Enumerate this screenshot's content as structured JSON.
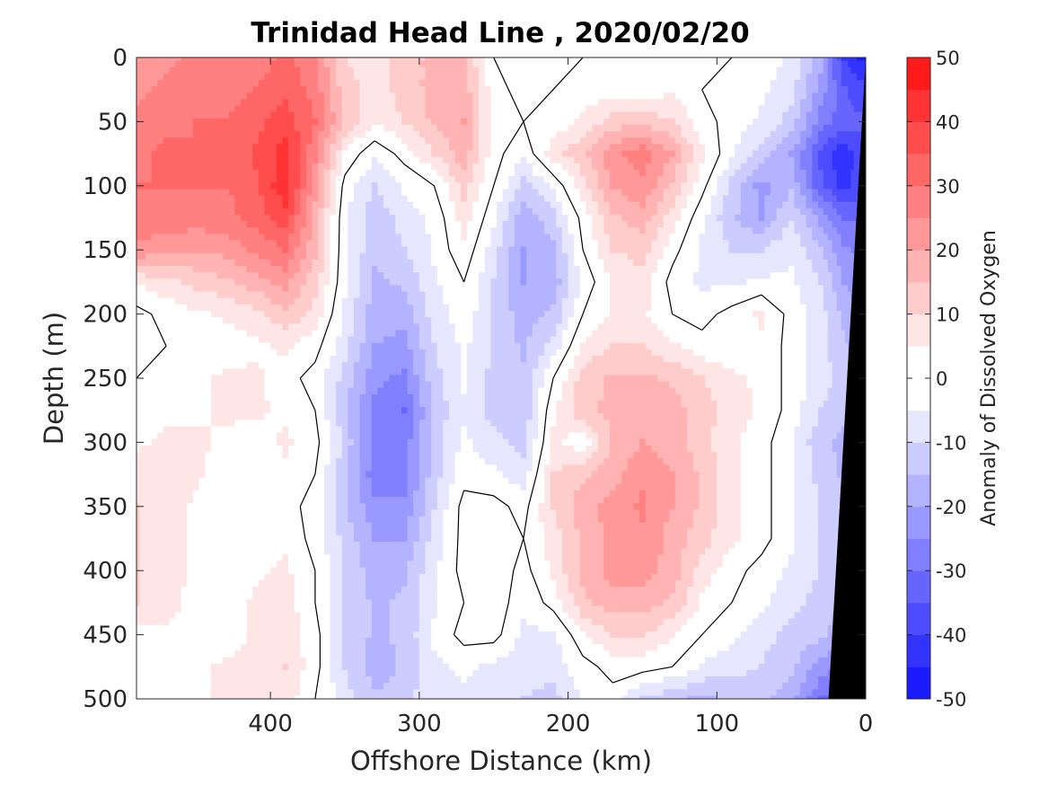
{
  "chart_data": {
    "type": "heatmap",
    "title": "Trinidad Head Line , 2020/02/20",
    "xlabel": "Offshore Distance (km)",
    "ylabel": "Depth (m)",
    "colorbar_label": "Anomaly of Dissolved Oxygen",
    "x_reversed": true,
    "y_reversed": true,
    "xlim": [
      490,
      0
    ],
    "ylim": [
      0,
      500
    ],
    "x_ticks": [
      400,
      300,
      200,
      100,
      0
    ],
    "y_ticks": [
      0,
      50,
      100,
      150,
      200,
      250,
      300,
      350,
      400,
      450,
      500
    ],
    "colorbar": {
      "range": [
        -50,
        50
      ],
      "interval": 5,
      "ticks": [
        50,
        40,
        30,
        20,
        10,
        0,
        -10,
        -20,
        -30,
        -40,
        -50
      ],
      "color_negative_max": "#0000ff",
      "color_positive_max": "#ff0000",
      "color_zero": "#ffffff"
    },
    "zero_contour": true,
    "land_mask_color": "#000000",
    "x": [
      490,
      470,
      450,
      430,
      410,
      390,
      370,
      350,
      330,
      310,
      290,
      270,
      250,
      230,
      210,
      190,
      170,
      150,
      130,
      110,
      90,
      70,
      50,
      30,
      15,
      5
    ],
    "y": [
      0,
      25,
      50,
      75,
      100,
      125,
      150,
      175,
      200,
      225,
      250,
      275,
      300,
      325,
      350,
      375,
      400,
      425,
      450,
      475,
      500
    ],
    "z": [
      [
        22,
        24,
        26,
        26,
        27,
        31,
        26,
        10,
        8,
        12,
        17,
        16,
        0,
        -4,
        -2,
        0,
        0,
        0,
        2,
        0,
        0,
        -2,
        -6,
        -18,
        -40,
        -45
      ],
      [
        24,
        26,
        28,
        28,
        30,
        34,
        28,
        12,
        8,
        12,
        17,
        18,
        2,
        -2,
        0,
        2,
        2,
        2,
        4,
        0,
        -2,
        -4,
        -8,
        -22,
        -34,
        -38
      ],
      [
        26,
        28,
        30,
        30,
        33,
        38,
        30,
        14,
        6,
        10,
        16,
        20,
        2,
        0,
        2,
        6,
        12,
        14,
        10,
        2,
        -2,
        -6,
        -12,
        -28,
        -32,
        -34
      ],
      [
        28,
        32,
        30,
        30,
        36,
        42,
        26,
        4,
        -4,
        2,
        10,
        18,
        2,
        -4,
        8,
        14,
        24,
        28,
        20,
        6,
        -4,
        -12,
        -20,
        -36,
        -44,
        -38
      ],
      [
        30,
        30,
        30,
        30,
        34,
        44,
        22,
        -2,
        -10,
        -4,
        0,
        12,
        0,
        -12,
        -4,
        8,
        20,
        24,
        14,
        2,
        -12,
        -22,
        -16,
        -34,
        -42,
        -38
      ],
      [
        28,
        28,
        28,
        28,
        32,
        38,
        18,
        -4,
        -14,
        -8,
        -4,
        8,
        -4,
        -18,
        -12,
        2,
        14,
        18,
        8,
        -4,
        -14,
        -20,
        -10,
        -22,
        -30,
        -30
      ],
      [
        24,
        22,
        20,
        22,
        26,
        30,
        16,
        -4,
        -14,
        -10,
        -4,
        4,
        -8,
        -20,
        -16,
        0,
        10,
        12,
        2,
        -6,
        -10,
        -10,
        -6,
        -14,
        -24,
        -26
      ],
      [
        6,
        8,
        12,
        14,
        18,
        22,
        12,
        -4,
        -16,
        -14,
        -6,
        0,
        -10,
        -20,
        -18,
        -4,
        6,
        8,
        -2,
        -6,
        -6,
        -4,
        -4,
        -10,
        -20,
        -22
      ],
      [
        -2,
        2,
        4,
        6,
        8,
        14,
        8,
        -6,
        -18,
        -18,
        -8,
        -2,
        -10,
        -18,
        -14,
        0,
        6,
        6,
        0,
        -2,
        2,
        6,
        -2,
        -8,
        -16,
        -20
      ],
      [
        -4,
        0,
        2,
        2,
        4,
        6,
        2,
        -8,
        -20,
        -22,
        -10,
        -4,
        -10,
        -16,
        -8,
        6,
        10,
        10,
        6,
        2,
        2,
        4,
        -2,
        -8,
        -14,
        -18
      ],
      [
        0,
        2,
        4,
        6,
        6,
        2,
        -2,
        -12,
        -24,
        -26,
        -12,
        -4,
        -12,
        -14,
        0,
        12,
        16,
        16,
        14,
        10,
        6,
        4,
        -2,
        -8,
        -12,
        -16
      ],
      [
        2,
        4,
        4,
        6,
        6,
        4,
        0,
        -14,
        -26,
        -30,
        -14,
        -6,
        -12,
        -14,
        4,
        14,
        16,
        18,
        18,
        12,
        8,
        4,
        -2,
        -10,
        -14,
        -16
      ],
      [
        4,
        6,
        6,
        4,
        2,
        6,
        2,
        -12,
        -26,
        -28,
        -12,
        -4,
        -8,
        -12,
        6,
        2,
        16,
        20,
        18,
        12,
        6,
        2,
        -4,
        -14,
        -16,
        -18
      ],
      [
        8,
        8,
        6,
        2,
        2,
        4,
        0,
        -14,
        -28,
        -28,
        -12,
        -2,
        -4,
        -8,
        10,
        14,
        18,
        24,
        20,
        14,
        6,
        2,
        -4,
        -12,
        -16,
        -18
      ],
      [
        10,
        8,
        4,
        2,
        2,
        2,
        -2,
        -14,
        -24,
        -24,
        -10,
        2,
        2,
        -2,
        10,
        18,
        22,
        26,
        20,
        14,
        6,
        2,
        -4,
        -10,
        -14,
        -16
      ],
      [
        10,
        8,
        4,
        2,
        4,
        4,
        -2,
        -12,
        -20,
        -20,
        -8,
        2,
        4,
        0,
        8,
        16,
        22,
        24,
        18,
        12,
        6,
        2,
        -4,
        -10,
        -14,
        -16
      ],
      [
        10,
        8,
        4,
        2,
        4,
        6,
        0,
        -10,
        -18,
        -16,
        -6,
        2,
        4,
        -2,
        6,
        16,
        22,
        22,
        18,
        8,
        2,
        -2,
        -6,
        -10,
        -14,
        -16
      ],
      [
        10,
        8,
        2,
        2,
        6,
        8,
        0,
        -10,
        -16,
        -14,
        -6,
        0,
        4,
        -4,
        2,
        14,
        18,
        18,
        14,
        4,
        0,
        -4,
        -8,
        -12,
        -16,
        -18
      ],
      [
        2,
        4,
        2,
        2,
        6,
        8,
        2,
        -10,
        -16,
        -14,
        -4,
        2,
        2,
        -6,
        -6,
        4,
        10,
        10,
        6,
        0,
        -4,
        -8,
        -12,
        -14,
        -18,
        -20
      ],
      [
        0,
        2,
        4,
        6,
        8,
        10,
        2,
        -10,
        -18,
        -14,
        -6,
        -4,
        -6,
        -8,
        -8,
        -2,
        2,
        2,
        0,
        -6,
        -8,
        -10,
        -14,
        -22,
        -26,
        -24
      ],
      [
        0,
        2,
        4,
        6,
        6,
        8,
        0,
        -8,
        -14,
        -12,
        -6,
        -6,
        -8,
        -10,
        -12,
        -4,
        -2,
        -10,
        -14,
        -16,
        -14,
        -14,
        -18,
        -30,
        -32,
        -30
      ]
    ],
    "land_boundary": [
      [
        0,
        0
      ],
      [
        25,
        500
      ]
    ]
  }
}
